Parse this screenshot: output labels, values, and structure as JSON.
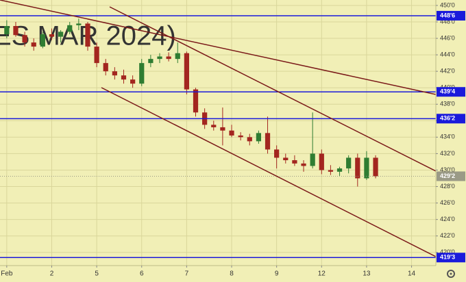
{
  "chart_data": {
    "type": "candlestick",
    "watermark": "ES MAR 2024)",
    "x": [
      0,
      0.2,
      0.4,
      0.6,
      0.8,
      1,
      1.2,
      1.4,
      1.6,
      1.8,
      2,
      2.2,
      2.4,
      2.6,
      2.8,
      3,
      3.2,
      3.4,
      3.6,
      3.8,
      4,
      4.2,
      4.4,
      4.6,
      4.8,
      5,
      5.2,
      5.4,
      5.6,
      5.8,
      6,
      6.2,
      6.4,
      6.6,
      6.8,
      7,
      7.2,
      7.4,
      7.6,
      7.8,
      8,
      8.2
    ],
    "open": [
      446.5,
      447.5,
      446.4,
      445.5,
      445,
      446.5,
      446.2,
      446.8,
      447.6,
      447.8,
      445,
      443,
      442,
      441.5,
      441,
      440.5,
      443,
      443.5,
      443.8,
      443.5,
      444.2,
      439.8,
      437,
      435.5,
      435.2,
      434.8,
      434.2,
      434,
      433.5,
      434.5,
      432.5,
      431.5,
      431.2,
      430.8,
      430.5,
      432,
      430,
      429.8,
      430.2,
      431.5,
      429,
      431.5
    ],
    "high": [
      448.2,
      448,
      446.8,
      446,
      446.8,
      447.2,
      447,
      448,
      448.4,
      448,
      445.5,
      443.5,
      442.5,
      442.2,
      441.5,
      443.5,
      444,
      444.2,
      444.3,
      445.5,
      444.4,
      440,
      437.5,
      436,
      437.6,
      435.5,
      434.6,
      434.4,
      434.8,
      436.5,
      433,
      432,
      431.8,
      431.2,
      437,
      432.5,
      430.6,
      430.4,
      431.8,
      432,
      432.3,
      431.8
    ],
    "low": [
      446,
      446.2,
      445,
      444.5,
      444.8,
      445.8,
      445.5,
      446.5,
      447,
      444.5,
      442.5,
      441.5,
      441,
      440.5,
      440,
      440.2,
      442.5,
      443,
      443.2,
      443,
      439.2,
      436.5,
      435,
      434.8,
      433,
      434,
      433.6,
      433,
      433.2,
      432,
      430.2,
      430.8,
      430.5,
      429.8,
      430.2,
      429.5,
      429.4,
      429.3,
      429.6,
      428,
      428.8,
      429
    ],
    "close": [
      447.5,
      446.4,
      445.5,
      445,
      446.5,
      446.2,
      446.8,
      447.6,
      447.8,
      445,
      443,
      442,
      441.5,
      441,
      440.5,
      443,
      443.5,
      443.8,
      443.5,
      444.2,
      439.8,
      437,
      435.5,
      435.2,
      434.8,
      434.2,
      434,
      433.5,
      434.5,
      432.5,
      431.5,
      431.2,
      430.8,
      430.5,
      432,
      430,
      429.8,
      430.2,
      431.5,
      429,
      431.5,
      429.25
    ],
    "up_color": "#2f7d32",
    "down_color": "#a3261f",
    "xlim": [
      -0.15,
      9.54
    ],
    "xticks": [
      {
        "value": 0,
        "label": "Feb"
      },
      {
        "value": 1,
        "label": "2"
      },
      {
        "value": 2,
        "label": "5"
      },
      {
        "value": 3,
        "label": "6"
      },
      {
        "value": 4,
        "label": "7"
      },
      {
        "value": 5,
        "label": "8"
      },
      {
        "value": 6,
        "label": "9"
      },
      {
        "value": 7,
        "label": "12"
      },
      {
        "value": 8,
        "label": "13"
      },
      {
        "value": 9,
        "label": "14"
      }
    ],
    "ylim": [
      418.4,
      450.66
    ],
    "yticks": [
      {
        "value": 420,
        "label": "420'0"
      },
      {
        "value": 422,
        "label": "422'0"
      },
      {
        "value": 424,
        "label": "424'0"
      },
      {
        "value": 426,
        "label": "426'0"
      },
      {
        "value": 428,
        "label": "428'0"
      },
      {
        "value": 430,
        "label": "430'0"
      },
      {
        "value": 432,
        "label": "432'0"
      },
      {
        "value": 434,
        "label": "434'0"
      },
      {
        "value": 436,
        "label": "436'0"
      },
      {
        "value": 438,
        "label": "438'0"
      },
      {
        "value": 440,
        "label": "440'0"
      },
      {
        "value": 442,
        "label": "442'0"
      },
      {
        "value": 444,
        "label": "444'0"
      },
      {
        "value": 446,
        "label": "446'0"
      },
      {
        "value": 448,
        "label": "448'0"
      },
      {
        "value": 450,
        "label": "450'0"
      }
    ],
    "grid": true,
    "levels": [
      {
        "value": 448.75,
        "label": "448'6",
        "color": "#1a1adb"
      },
      {
        "value": 439.5,
        "label": "439'4",
        "color": "#1a1adb"
      },
      {
        "value": 436.25,
        "label": "436'2",
        "color": "#1a1adb"
      },
      {
        "value": 419.375,
        "label": "419'3",
        "color": "#1a1adb"
      }
    ],
    "last_price": {
      "value": 429.25,
      "label": "429'2",
      "color": "#9a9a86"
    }
  }
}
